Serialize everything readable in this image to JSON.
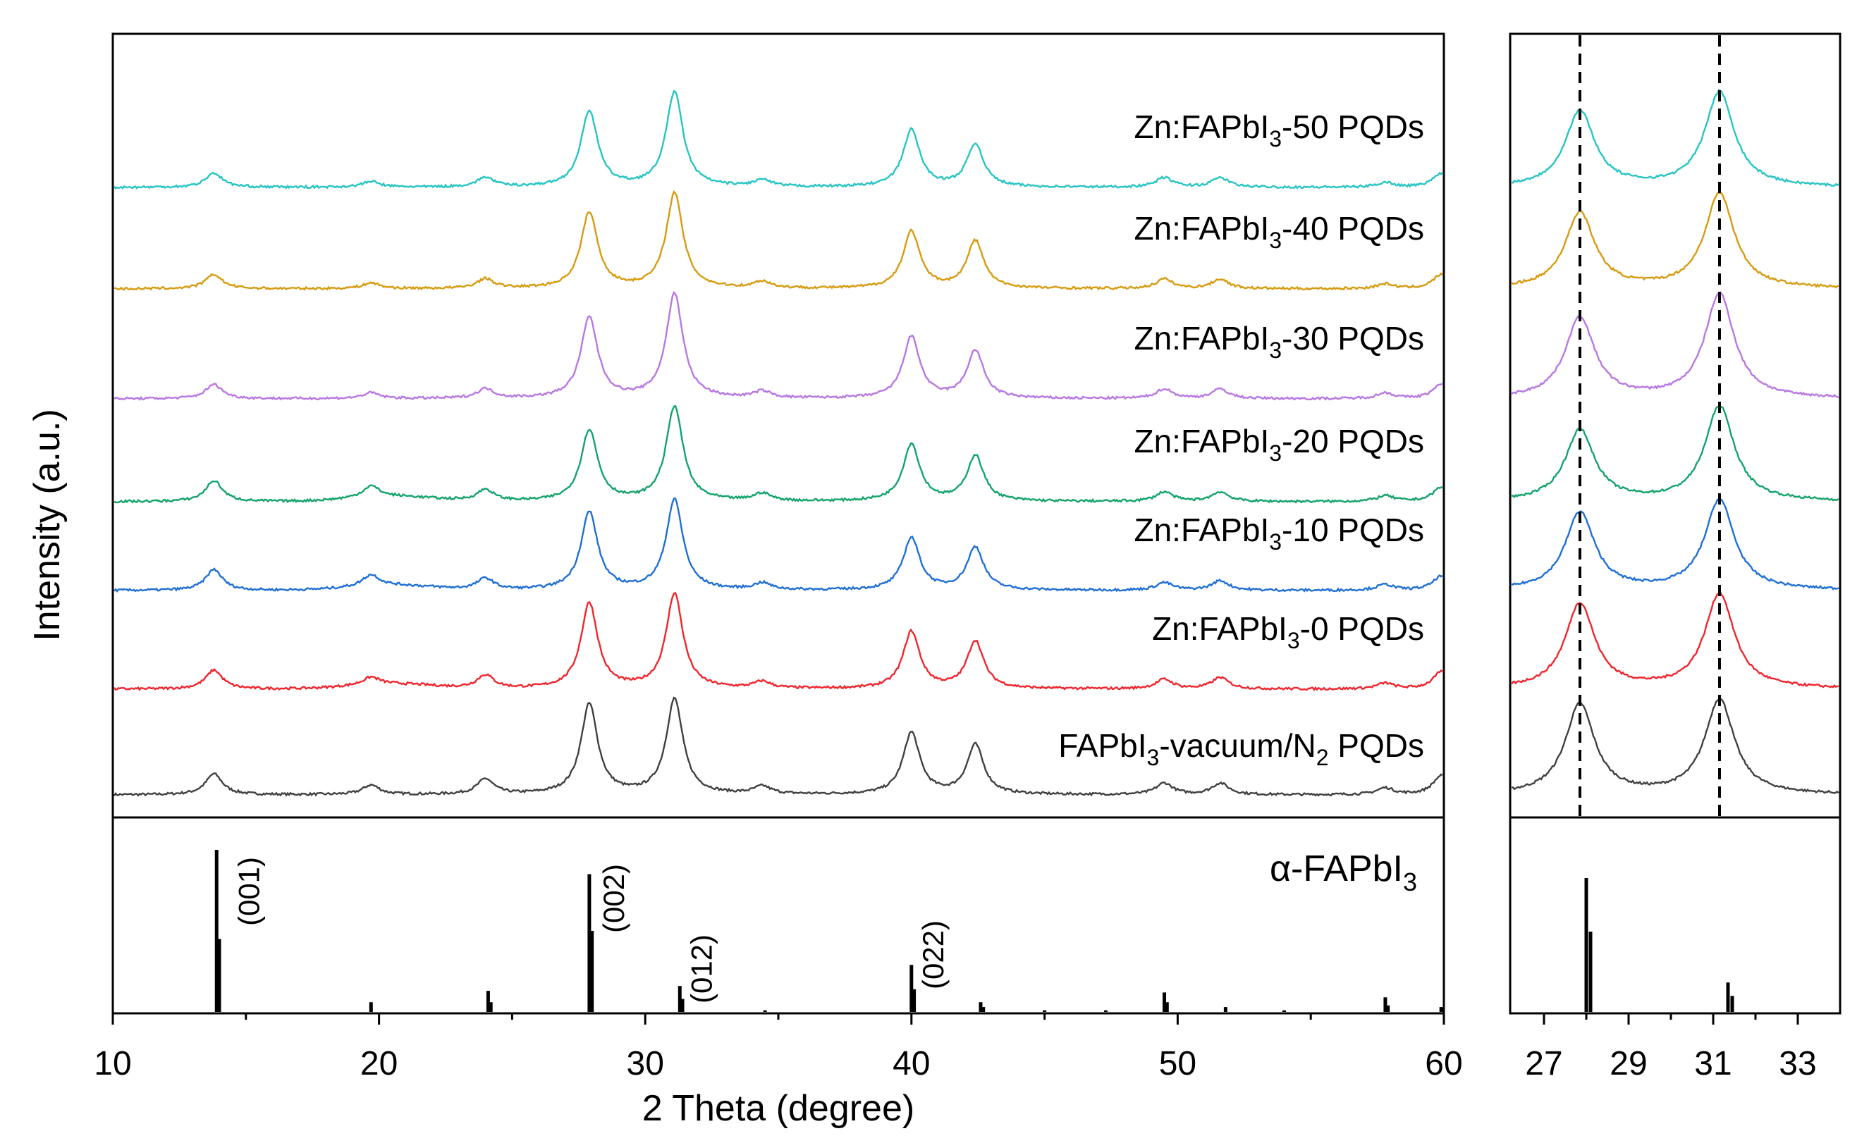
{
  "colors": {
    "fapbi3_vacuum_n2": "#404040",
    "zn0": "#f0252d",
    "zn10": "#1f6fd6",
    "zn20": "#13a36b",
    "zn30": "#b877e3",
    "zn40": "#d79b10",
    "zn50": "#27c4c4",
    "reference": "#000000"
  },
  "chart_data": [
    {
      "type": "line",
      "panel": "main XRD patterns (stacked)",
      "xlabel": "2 Theta (degree)",
      "ylabel": "Intensity (a.u.)",
      "xlim": [
        10,
        60
      ],
      "xticks": [
        "10",
        "20",
        "30",
        "40",
        "50",
        "60"
      ],
      "peaks_2theta": [
        13.8,
        19.7,
        24.0,
        27.9,
        31.1,
        34.4,
        40.0,
        42.4,
        49.5,
        51.6,
        57.8,
        59.9
      ],
      "series": [
        {
          "name": "FAPbI3-vacuum/N2 PQDs",
          "key": "fapbi3_vacuum_n2",
          "label_main": "FAPbI",
          "label_sub": "3",
          "label_mid": "-vacuum/N",
          "label_sub2": "2",
          "label_tail": " PQDs",
          "relative_intensities": [
            0.22,
            0.1,
            0.16,
            0.95,
            1.0,
            0.08,
            0.65,
            0.52,
            0.12,
            0.12,
            0.07,
            0.2
          ]
        },
        {
          "name": "Zn:FAPbI3-0 PQDs",
          "key": "zn0",
          "label_main": "Zn:FAPbI",
          "label_sub": "3",
          "label_tail": "-0 PQDs",
          "relative_intensities": [
            0.2,
            0.08,
            0.14,
            0.9,
            1.0,
            0.07,
            0.6,
            0.5,
            0.1,
            0.12,
            0.06,
            0.18
          ]
        },
        {
          "name": "Zn:FAPbI3-10 PQDs",
          "key": "zn10",
          "label_main": "Zn:FAPbI",
          "label_sub": "3",
          "label_tail": "-10 PQDs",
          "relative_intensities": [
            0.22,
            0.12,
            0.12,
            0.82,
            0.95,
            0.07,
            0.55,
            0.45,
            0.08,
            0.1,
            0.06,
            0.15
          ]
        },
        {
          "name": "Zn:FAPbI3-20 PQDs",
          "key": "zn20",
          "label_main": "Zn:FAPbI",
          "label_sub": "3",
          "label_tail": "-20 PQDs",
          "relative_intensities": [
            0.22,
            0.12,
            0.12,
            0.75,
            1.0,
            0.08,
            0.6,
            0.48,
            0.1,
            0.1,
            0.06,
            0.15
          ]
        },
        {
          "name": "Zn:FAPbI3-30 PQDs",
          "key": "zn30",
          "label_main": "Zn:FAPbI",
          "label_sub": "3",
          "label_tail": "-30 PQDs",
          "relative_intensities": [
            0.15,
            0.06,
            0.1,
            0.85,
            1.1,
            0.07,
            0.65,
            0.5,
            0.1,
            0.1,
            0.06,
            0.15
          ]
        },
        {
          "name": "Zn:FAPbI3-40 PQDs",
          "key": "zn40",
          "label_main": "Zn:FAPbI",
          "label_sub": "3",
          "label_tail": "-40 PQDs",
          "relative_intensities": [
            0.15,
            0.06,
            0.1,
            0.8,
            1.0,
            0.07,
            0.6,
            0.5,
            0.1,
            0.1,
            0.05,
            0.15
          ]
        },
        {
          "name": "Zn:FAPbI3-50 PQDs",
          "key": "zn50",
          "label_main": "Zn:FAPbI",
          "label_sub": "3",
          "label_tail": "-50 PQDs",
          "relative_intensities": [
            0.15,
            0.06,
            0.1,
            0.8,
            1.0,
            0.07,
            0.6,
            0.45,
            0.1,
            0.1,
            0.05,
            0.15
          ]
        }
      ]
    },
    {
      "type": "bar",
      "panel": "reference pattern",
      "legend_main": "α-FAPbI",
      "legend_sub": "3",
      "xlim": [
        10,
        60
      ],
      "lines": [
        {
          "x": 13.9,
          "y": 1.0
        },
        {
          "x": 14.0,
          "y": 0.45
        },
        {
          "x": 19.7,
          "y": 0.06
        },
        {
          "x": 24.1,
          "y": 0.13
        },
        {
          "x": 24.2,
          "y": 0.06
        },
        {
          "x": 27.9,
          "y": 0.85
        },
        {
          "x": 28.0,
          "y": 0.5
        },
        {
          "x": 31.3,
          "y": 0.16
        },
        {
          "x": 31.4,
          "y": 0.08
        },
        {
          "x": 34.5,
          "y": 0.01
        },
        {
          "x": 40.0,
          "y": 0.29
        },
        {
          "x": 40.1,
          "y": 0.14
        },
        {
          "x": 42.6,
          "y": 0.06
        },
        {
          "x": 42.7,
          "y": 0.03
        },
        {
          "x": 45.0,
          "y": 0.01
        },
        {
          "x": 47.3,
          "y": 0.01
        },
        {
          "x": 49.5,
          "y": 0.12
        },
        {
          "x": 49.6,
          "y": 0.06
        },
        {
          "x": 51.8,
          "y": 0.03
        },
        {
          "x": 54.0,
          "y": 0.01
        },
        {
          "x": 57.8,
          "y": 0.09
        },
        {
          "x": 57.9,
          "y": 0.04
        },
        {
          "x": 59.9,
          "y": 0.03
        }
      ],
      "annotations": [
        {
          "label": "(001)",
          "x": 15.5
        },
        {
          "label": "(002)",
          "x": 29.2
        },
        {
          "label": "(012)",
          "x": 32.5
        },
        {
          "label": "(022)",
          "x": 41.2
        }
      ]
    },
    {
      "type": "line",
      "panel": "zoom inset",
      "xlim": [
        26.2,
        34
      ],
      "xticks": [
        "27",
        "29",
        "31",
        "33"
      ],
      "dashed_reference_lines": [
        27.85,
        31.15
      ],
      "peaks_2theta": [
        27.85,
        31.15
      ],
      "reference_lines": [
        {
          "x": 28.0,
          "y": 1.0
        },
        {
          "x": 28.1,
          "y": 0.6
        },
        {
          "x": 31.35,
          "y": 0.22
        },
        {
          "x": 31.45,
          "y": 0.12
        }
      ]
    }
  ]
}
